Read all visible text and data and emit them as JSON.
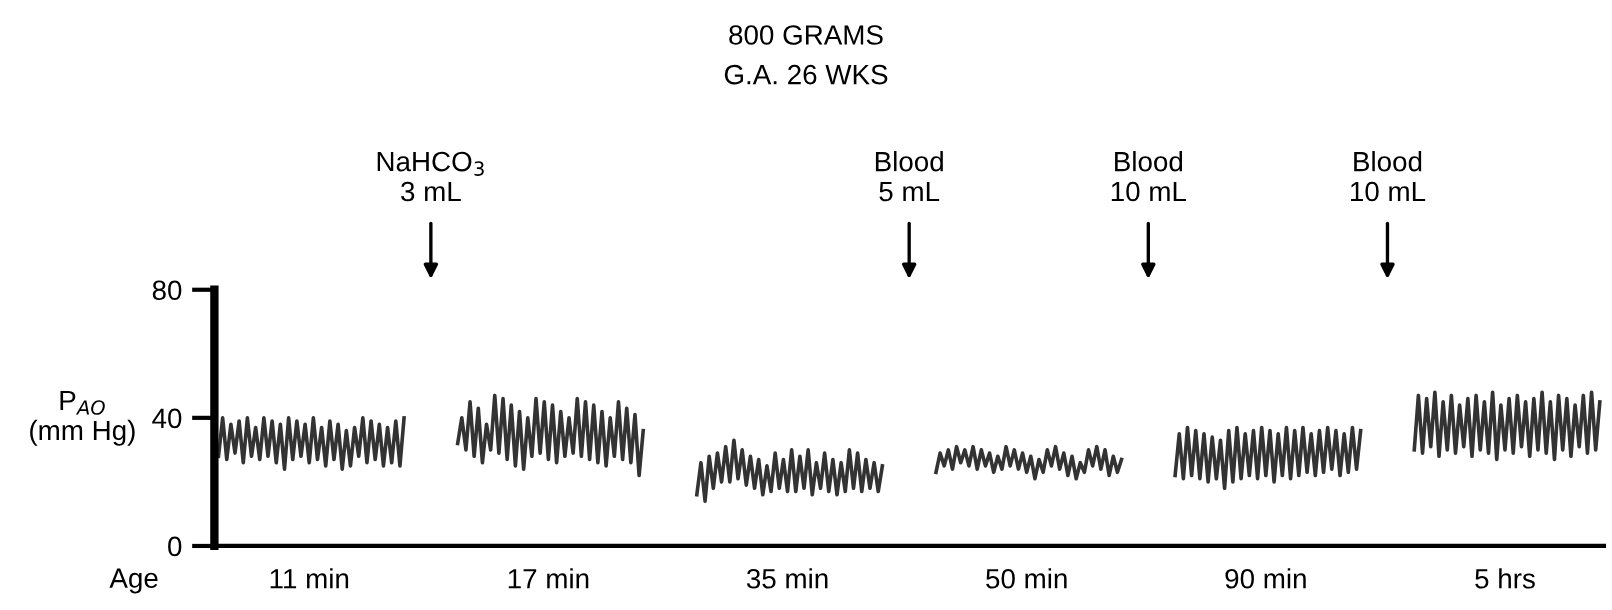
{
  "chart_data": {
    "type": "line",
    "title": "800 GRAMS",
    "subtitle": "G.A. 26 WKS",
    "xlabel": "Age",
    "ylabel": "P$_{AO}$\n(mm Hg)",
    "ylim": [
      0,
      80
    ],
    "yticks": [
      0,
      40,
      80
    ],
    "grid": false,
    "legend": false,
    "marker": "none",
    "line_style": "solid",
    "annotations": [
      "NaHCO$_{3}$\n3 mL",
      "Blood\n5 mL",
      "Blood\n10 mL",
      "Blood\n10 mL"
    ],
    "categories": [
      null,
      null,
      null,
      null,
      null,
      null,
      null,
      null,
      null,
      null,
      null,
      null,
      null,
      null,
      null,
      null,
      null,
      null,
      null,
      null,
      null,
      null,
      "11 min",
      null,
      null,
      null,
      null,
      null,
      null,
      null,
      null,
      null,
      null,
      null,
      null,
      null,
      null,
      null,
      null,
      null,
      null,
      null,
      null,
      null,
      null,
      null,
      null,
      null,
      null,
      null,
      null,
      null,
      null,
      null,
      null,
      null,
      null,
      null,
      null,
      null,
      null,
      null,
      null,
      null,
      null,
      null,
      null,
      null,
      null,
      null,
      null,
      null,
      null,
      null,
      null,
      null,
      null,
      null,
      null,
      null,
      "17 min",
      null,
      null,
      null,
      null,
      null,
      null,
      null,
      null,
      null,
      null,
      null,
      null,
      null,
      null,
      null,
      null,
      null,
      null,
      null,
      null,
      null,
      null,
      null,
      null,
      null,
      null,
      null,
      null,
      null,
      null,
      null,
      null,
      null,
      null,
      null,
      null,
      null,
      null,
      null,
      null,
      null,
      null,
      null,
      null,
      null,
      null,
      null,
      null,
      null,
      null,
      null,
      null,
      null,
      null,
      null,
      null,
      null,
      "35 min",
      null,
      null,
      null,
      null,
      null,
      null,
      null,
      null,
      null,
      null,
      null,
      null,
      null,
      null,
      null,
      null,
      null,
      null,
      null,
      null,
      null,
      null,
      null,
      null,
      null,
      null,
      null,
      null,
      null,
      null,
      null,
      null,
      null,
      null,
      null,
      null,
      null,
      null,
      null,
      null,
      null,
      null,
      null,
      null,
      null,
      null,
      null,
      null,
      null,
      null,
      null,
      null,
      null,
      null,
      null,
      null,
      null,
      "50 min",
      null,
      null,
      null,
      null,
      null,
      null,
      null,
      null,
      null,
      null,
      null,
      null,
      null,
      null,
      null,
      null,
      null,
      null,
      null,
      null,
      null,
      null,
      null,
      null,
      null,
      null,
      null,
      null,
      null,
      null,
      null,
      null,
      null,
      null,
      null,
      null,
      null,
      null,
      null,
      null,
      null,
      null,
      null,
      null,
      null,
      null,
      null,
      null,
      null,
      null,
      null,
      null,
      null,
      null,
      null,
      null,
      null,
      "90 min",
      null,
      null,
      null,
      null,
      null,
      null,
      null,
      null,
      null,
      null,
      null,
      null,
      null,
      null,
      null,
      null,
      null,
      null,
      null,
      null,
      null,
      null,
      null,
      null,
      null,
      null,
      null,
      null,
      null,
      null,
      null,
      null,
      null,
      null,
      null,
      null,
      null,
      null,
      null,
      null,
      null,
      null,
      null,
      null,
      null,
      null,
      null,
      null,
      null,
      null,
      null,
      null,
      null,
      null,
      null,
      null,
      null,
      "5 hrs",
      null,
      null,
      null,
      null,
      null,
      null,
      null,
      null,
      null,
      null,
      null,
      null,
      null,
      null,
      null,
      null,
      null,
      null,
      null,
      null,
      null,
      null,
      null
    ],
    "series": [
      {
        "color": "#333333",
        "values": [
          28,
          40,
          27,
          38,
          29,
          39,
          26,
          40,
          28,
          37,
          27,
          40,
          28,
          39,
          26,
          38,
          24,
          40,
          27,
          39,
          28,
          38,
          26,
          40,
          27,
          37,
          25,
          39,
          27,
          38,
          24,
          36,
          25,
          37,
          28,
          40,
          26,
          39,
          27,
          38,
          25,
          37,
          26,
          39,
          25,
          40,
          null,
          null,
          null,
          null,
          null,
          null,
          null,
          null,
          null,
          null,
          null,
          null,
          32,
          40,
          30,
          45,
          28,
          43,
          26,
          38,
          30,
          47,
          29,
          46,
          27,
          44,
          25,
          42,
          24,
          40,
          28,
          46,
          29,
          45,
          27,
          44,
          26,
          42,
          28,
          40,
          29,
          46,
          28,
          45,
          27,
          44,
          26,
          42,
          25,
          40,
          28,
          45,
          27,
          43,
          26,
          41,
          22,
          36,
          null,
          null,
          null,
          null,
          null,
          null,
          null,
          null,
          null,
          null,
          null,
          null,
          16,
          26,
          14,
          28,
          18,
          29,
          20,
          31,
          20,
          33,
          21,
          30,
          19,
          28,
          18,
          27,
          16,
          25,
          17,
          29,
          18,
          27,
          17,
          30,
          17,
          28,
          18,
          30,
          16,
          26,
          18,
          29,
          17,
          27,
          16,
          26,
          17,
          30,
          18,
          29,
          17,
          27,
          18,
          26,
          17,
          25,
          null,
          null,
          null,
          null,
          null,
          null,
          null,
          null,
          null,
          null,
          null,
          null,
          23,
          29,
          25,
          30,
          24,
          31,
          26,
          30,
          25,
          31,
          24,
          30,
          25,
          29,
          23,
          28,
          24,
          31,
          25,
          30,
          24,
          29,
          23,
          28,
          21,
          27,
          23,
          30,
          25,
          31,
          24,
          29,
          22,
          28,
          21,
          26,
          23,
          30,
          25,
          31,
          24,
          30,
          22,
          28,
          23,
          27,
          null,
          null,
          null,
          null,
          null,
          null,
          null,
          null,
          null,
          null,
          null,
          null,
          22,
          35,
          21,
          37,
          22,
          36,
          21,
          35,
          20,
          34,
          21,
          33,
          18,
          36,
          20,
          37,
          21,
          35,
          22,
          36,
          21,
          37,
          22,
          36,
          20,
          35,
          22,
          37,
          21,
          36,
          22,
          37,
          23,
          35,
          22,
          36,
          23,
          37,
          24,
          36,
          22,
          35,
          23,
          37,
          24,
          36,
          null,
          null,
          null,
          null,
          null,
          null,
          null,
          null,
          null,
          null,
          null,
          null,
          30,
          47,
          29,
          46,
          31,
          48,
          28,
          45,
          30,
          47,
          29,
          44,
          31,
          46,
          28,
          47,
          30,
          45,
          29,
          48,
          27,
          44,
          30,
          46,
          29,
          47,
          31,
          45,
          28,
          46,
          30,
          48,
          29,
          45,
          27,
          47,
          30,
          46,
          28,
          44,
          31,
          47,
          29,
          48,
          30,
          45
        ]
      }
    ]
  }
}
